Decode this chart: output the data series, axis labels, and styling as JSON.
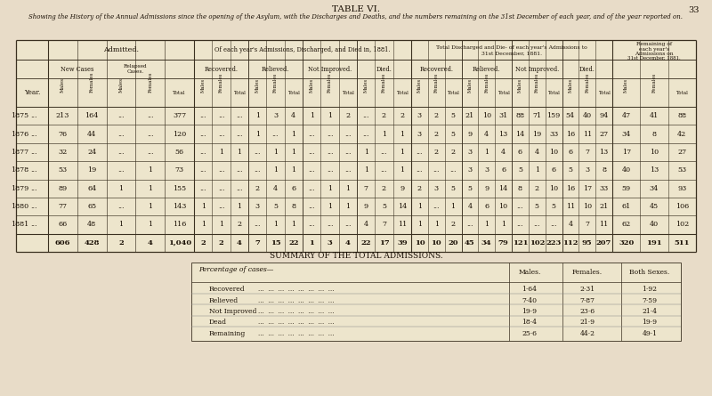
{
  "page_bg": "#e8dcc8",
  "table_bg": "#ede5cc",
  "dark": "#1a1005",
  "title": "TABLE VI.",
  "page_num": "33",
  "subtitle": "Showing the History of the Annual Admissions since the opening of the Asylum, with the Discharges and Deaths, and the numbers remaining on the 31st December of each year, and of the year reported on.",
  "summary_title": "SUMMARY OF THE TOTAL ADMISSIONS.",
  "summary_rows": [
    [
      "Recovered",
      "1·64",
      "2·31",
      "1·92"
    ],
    [
      "Relieved",
      "7·40",
      "7·87",
      "7·59"
    ],
    [
      "Not Improved",
      "19·9",
      "23·6",
      "21·4"
    ],
    [
      "Dead",
      "18·4",
      "21·9",
      "19·9"
    ],
    [
      "Remaining",
      "25·6",
      "44·2",
      "49·1"
    ]
  ],
  "summary_cols": [
    "Males.",
    "Females.",
    "Both Sexes."
  ],
  "table_rows": [
    [
      "1875",
      "213",
      "164",
      "...",
      "...",
      "377",
      "...",
      "...",
      "...",
      "1",
      "3",
      "4",
      "1",
      "1",
      "2",
      "...",
      "2",
      "2",
      "3",
      "2",
      "5",
      "21",
      "10",
      "31",
      "88",
      "71",
      "159",
      "54",
      "40",
      "94",
      "47",
      "41",
      "88"
    ],
    [
      "1876",
      "76",
      "44",
      "...",
      "...",
      "120",
      "...",
      "...",
      "...",
      "1",
      "...",
      "1",
      "...",
      "...",
      "...",
      "...",
      "1",
      "1",
      "3",
      "2",
      "5",
      "9",
      "4",
      "13",
      "14",
      "19",
      "33",
      "16",
      "11",
      "27",
      "34",
      "8",
      "42"
    ],
    [
      "1877",
      "32",
      "24",
      "...",
      "...",
      "56",
      "...",
      "1",
      "1",
      "...",
      "1",
      "1",
      "...",
      "...",
      "...",
      "1",
      "...",
      "1",
      "...",
      "2",
      "2",
      "3",
      "1",
      "4",
      "6",
      "4",
      "10",
      "6",
      "7",
      "13",
      "17",
      "10",
      "27"
    ],
    [
      "1878",
      "53",
      "19",
      "...",
      "1",
      "73",
      "...",
      "...",
      "...",
      "...",
      "1",
      "1",
      "...",
      "...",
      "...",
      "1",
      "...",
      "1",
      "...",
      "...",
      "...",
      "3",
      "3",
      "6",
      "5",
      "1",
      "6",
      "5",
      "3",
      "8",
      "40",
      "13",
      "53"
    ],
    [
      "1879",
      "89",
      "64",
      "1",
      "1",
      "155",
      "...",
      "...",
      "...",
      "2",
      "4",
      "6",
      "...",
      "1",
      "1",
      "7",
      "2",
      "9",
      "2",
      "3",
      "5",
      "5",
      "9",
      "14",
      "8",
      "2",
      "10",
      "16",
      "17",
      "33",
      "59",
      "34",
      "93"
    ],
    [
      "1880",
      "77",
      "65",
      "...",
      "1",
      "143",
      "1",
      "...",
      "1",
      "3",
      "5",
      "8",
      "...",
      "1",
      "1",
      "9",
      "5",
      "14",
      "1",
      "...",
      "1",
      "4",
      "6",
      "10",
      "...",
      "5",
      "5",
      "11",
      "10",
      "21",
      "61",
      "45",
      "106"
    ],
    [
      "1881",
      "66",
      "48",
      "1",
      "1",
      "116",
      "1",
      "1",
      "2",
      "...",
      "1",
      "1",
      "...",
      "...",
      "...",
      "4",
      "7",
      "11",
      "1",
      "1",
      "2",
      "...",
      "1",
      "1",
      "...",
      "...",
      "...",
      "4",
      "7",
      "11",
      "62",
      "40",
      "102"
    ],
    [
      "",
      "606",
      "428",
      "2",
      "4",
      "1,040",
      "2",
      "2",
      "4",
      "7",
      "15",
      "22",
      "1",
      "3",
      "4",
      "22",
      "17",
      "39",
      "10",
      "10",
      "20",
      "45",
      "34",
      "79",
      "121",
      "102",
      "223",
      "112",
      "95",
      "207",
      "320",
      "191",
      "511"
    ]
  ]
}
